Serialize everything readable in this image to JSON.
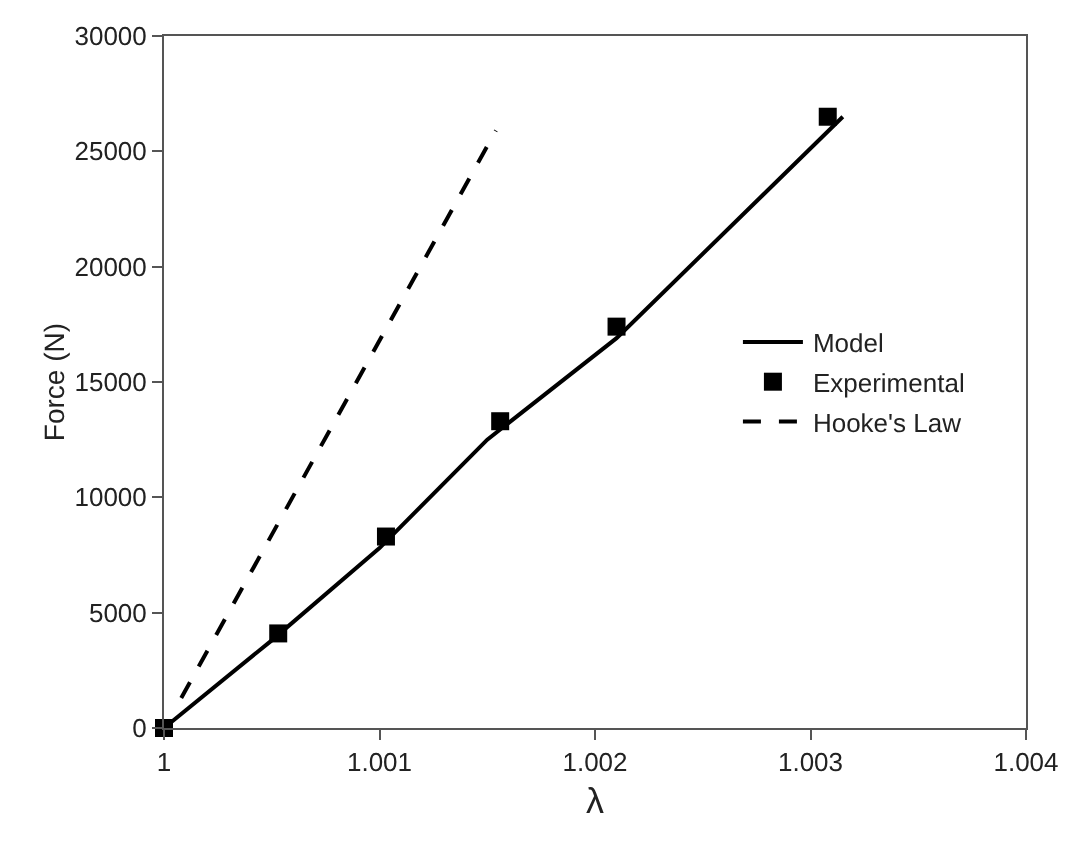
{
  "chart_data": {
    "type": "line",
    "xlabel": "λ",
    "ylabel": "Force (N)",
    "xlim": [
      1,
      1.004
    ],
    "xticks": [
      1,
      1.001,
      1.002,
      1.003,
      1.004
    ],
    "ylim": [
      0,
      30000
    ],
    "yticks": [
      0,
      5000,
      10000,
      15000,
      20000,
      25000,
      30000
    ],
    "grid": false,
    "legend": "right",
    "series": [
      {
        "name": "Model",
        "color": "#000000",
        "line_style": "solid",
        "marker": "none",
        "x": [
          1,
          1.0005,
          1.001,
          1.0015,
          1.0021,
          1.00315
        ],
        "values": [
          0,
          3800,
          7800,
          12500,
          16900,
          26500
        ]
      },
      {
        "name": "Experimental",
        "type": "scatter",
        "color": "#000000",
        "marker": "square",
        "x": [
          1,
          1.00053,
          1.00103,
          1.00156,
          1.0021,
          1.00308
        ],
        "values": [
          0,
          4100,
          8300,
          13300,
          17400,
          26500
        ]
      },
      {
        "name": "Hooke's Law",
        "color": "#000000",
        "line_style": "dashed",
        "marker": "none",
        "x": [
          1.00008,
          1.00154
        ],
        "values": [
          1300,
          25900
        ]
      }
    ]
  }
}
